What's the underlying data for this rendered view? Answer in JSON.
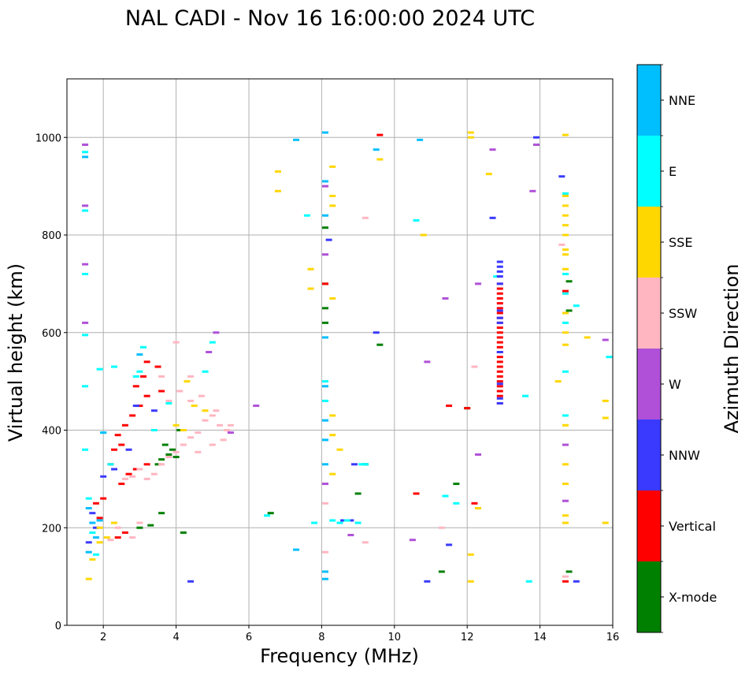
{
  "chart_data": {
    "type": "scatter",
    "title": "NAL CADI - Nov 16 16:00:00 2024 UTC",
    "xlabel": "Frequency (MHz)",
    "ylabel": "Virtual height (km)",
    "xlim": [
      1,
      16
    ],
    "ylim": [
      0,
      1120
    ],
    "x_ticks": [
      2,
      4,
      6,
      8,
      10,
      12,
      14,
      16
    ],
    "y_ticks": [
      0,
      200,
      400,
      600,
      800,
      1000
    ],
    "grid": true,
    "colorbar": {
      "label": "Azimuth Direction",
      "categories": [
        {
          "name": "X-mode",
          "color": "#008000"
        },
        {
          "name": "Vertical",
          "color": "#ff0000"
        },
        {
          "name": "NNW",
          "color": "#3a3aff"
        },
        {
          "name": "W",
          "color": "#b050d8"
        },
        {
          "name": "SSW",
          "color": "#ffb6c1"
        },
        {
          "name": "SSE",
          "color": "#ffd700"
        },
        {
          "name": "E",
          "color": "#00ffff"
        },
        {
          "name": "NNE",
          "color": "#00bfff"
        }
      ]
    },
    "series": [
      {
        "name": "X-mode",
        "points": [
          [
            3.6,
            340
          ],
          [
            3.8,
            350
          ],
          [
            4.0,
            345
          ],
          [
            3.5,
            330
          ],
          [
            3.9,
            360
          ],
          [
            3.3,
            205
          ],
          [
            3.6,
            230
          ],
          [
            3.0,
            200
          ],
          [
            4.2,
            190
          ],
          [
            8.1,
            815
          ],
          [
            8.1,
            650
          ],
          [
            8.1,
            620
          ],
          [
            8.1,
            700
          ],
          [
            9.0,
            270
          ],
          [
            9.6,
            575
          ],
          [
            11.3,
            110
          ],
          [
            11.7,
            290
          ],
          [
            12.0,
            445
          ],
          [
            14.8,
            705
          ],
          [
            14.8,
            645
          ],
          [
            14.8,
            110
          ],
          [
            6.6,
            230
          ],
          [
            9.2,
            330
          ],
          [
            3.7,
            370
          ],
          [
            4.1,
            400
          ]
        ]
      },
      {
        "name": "Vertical",
        "points": [
          [
            2.4,
            390
          ],
          [
            2.6,
            410
          ],
          [
            2.8,
            430
          ],
          [
            3.0,
            450
          ],
          [
            2.3,
            360
          ],
          [
            2.5,
            370
          ],
          [
            2.9,
            490
          ],
          [
            3.2,
            470
          ],
          [
            2.7,
            310
          ],
          [
            2.9,
            320
          ],
          [
            3.2,
            330
          ],
          [
            2.4,
            180
          ],
          [
            2.6,
            190
          ],
          [
            1.9,
            220
          ],
          [
            1.8,
            250
          ],
          [
            2.0,
            260
          ],
          [
            3.5,
            530
          ],
          [
            3.2,
            540
          ],
          [
            3.6,
            480
          ],
          [
            9.6,
            1005
          ],
          [
            8.1,
            700
          ],
          [
            11.5,
            450
          ],
          [
            12.2,
            250
          ],
          [
            10.6,
            270
          ],
          [
            14.7,
            90
          ],
          [
            14.7,
            685
          ],
          [
            12.0,
            445
          ],
          [
            2.2,
            330
          ],
          [
            3.1,
            510
          ],
          [
            2.5,
            290
          ]
        ]
      },
      {
        "name": "NNW",
        "points": [
          [
            1.8,
            200
          ],
          [
            1.7,
            230
          ],
          [
            1.6,
            170
          ],
          [
            2.3,
            320
          ],
          [
            2.9,
            450
          ],
          [
            8.2,
            790
          ],
          [
            8.6,
            215
          ],
          [
            8.8,
            215
          ],
          [
            9.5,
            600
          ],
          [
            11.5,
            165
          ],
          [
            12.7,
            835
          ],
          [
            13.9,
            1000
          ],
          [
            14.6,
            920
          ],
          [
            15.0,
            90
          ],
          [
            10.9,
            90
          ],
          [
            4.4,
            90
          ],
          [
            2.0,
            305
          ],
          [
            8.9,
            330
          ],
          [
            3.4,
            440
          ],
          [
            2.7,
            360
          ]
        ]
      },
      {
        "name": "W",
        "points": [
          [
            1.5,
            740
          ],
          [
            1.5,
            860
          ],
          [
            1.5,
            620
          ],
          [
            1.5,
            985
          ],
          [
            8.1,
            900
          ],
          [
            8.1,
            760
          ],
          [
            8.1,
            290
          ],
          [
            11.4,
            670
          ],
          [
            12.7,
            975
          ],
          [
            13.8,
            890
          ],
          [
            13.9,
            985
          ],
          [
            14.7,
            255
          ],
          [
            14.7,
            370
          ],
          [
            12.3,
            350
          ],
          [
            12.3,
            700
          ],
          [
            10.5,
            175
          ],
          [
            10.9,
            540
          ],
          [
            6.2,
            450
          ],
          [
            5.1,
            600
          ],
          [
            4.9,
            560
          ],
          [
            5.5,
            395
          ],
          [
            8.8,
            185
          ],
          [
            15.8,
            585
          ]
        ]
      },
      {
        "name": "SSW",
        "points": [
          [
            2.2,
            175
          ],
          [
            2.4,
            200
          ],
          [
            2.6,
            300
          ],
          [
            2.8,
            305
          ],
          [
            3.0,
            320
          ],
          [
            3.2,
            300
          ],
          [
            3.4,
            310
          ],
          [
            3.6,
            330
          ],
          [
            3.8,
            345
          ],
          [
            4.0,
            355
          ],
          [
            4.2,
            370
          ],
          [
            4.4,
            385
          ],
          [
            4.6,
            395
          ],
          [
            4.8,
            420
          ],
          [
            5.0,
            430
          ],
          [
            5.2,
            410
          ],
          [
            5.3,
            380
          ],
          [
            5.4,
            400
          ],
          [
            5.5,
            410
          ],
          [
            5.1,
            440
          ],
          [
            4.7,
            470
          ],
          [
            4.4,
            460
          ],
          [
            4.1,
            480
          ],
          [
            3.8,
            460
          ],
          [
            4.4,
            510
          ],
          [
            4.0,
            580
          ],
          [
            3.6,
            510
          ],
          [
            9.2,
            835
          ],
          [
            9.2,
            170
          ],
          [
            12.2,
            530
          ],
          [
            11.3,
            200
          ],
          [
            14.6,
            780
          ],
          [
            14.7,
            100
          ],
          [
            8.1,
            250
          ],
          [
            8.1,
            150
          ],
          [
            2.8,
            180
          ],
          [
            3.0,
            210
          ],
          [
            4.6,
            355
          ],
          [
            5.0,
            370
          ]
        ]
      },
      {
        "name": "SSE",
        "points": [
          [
            1.6,
            95
          ],
          [
            1.7,
            135
          ],
          [
            1.9,
            170
          ],
          [
            1.9,
            200
          ],
          [
            2.1,
            180
          ],
          [
            2.3,
            210
          ],
          [
            4.2,
            400
          ],
          [
            4.5,
            450
          ],
          [
            4.8,
            440
          ],
          [
            4.3,
            500
          ],
          [
            4.0,
            410
          ],
          [
            6.8,
            930
          ],
          [
            6.8,
            890
          ],
          [
            7.7,
            730
          ],
          [
            7.7,
            690
          ],
          [
            8.3,
            940
          ],
          [
            8.3,
            880
          ],
          [
            8.3,
            860
          ],
          [
            8.3,
            670
          ],
          [
            8.3,
            430
          ],
          [
            8.3,
            390
          ],
          [
            8.5,
            360
          ],
          [
            8.3,
            310
          ],
          [
            9.6,
            955
          ],
          [
            10.8,
            800
          ],
          [
            12.1,
            1010
          ],
          [
            12.1,
            1000
          ],
          [
            12.6,
            925
          ],
          [
            12.3,
            240
          ],
          [
            12.1,
            145
          ],
          [
            12.1,
            90
          ],
          [
            14.5,
            500
          ],
          [
            14.7,
            1005
          ],
          [
            14.7,
            880
          ],
          [
            14.7,
            860
          ],
          [
            14.7,
            840
          ],
          [
            14.7,
            820
          ],
          [
            14.7,
            800
          ],
          [
            14.7,
            770
          ],
          [
            14.7,
            760
          ],
          [
            14.7,
            730
          ],
          [
            14.7,
            600
          ],
          [
            14.7,
            575
          ],
          [
            14.7,
            410
          ],
          [
            14.7,
            330
          ],
          [
            14.7,
            290
          ],
          [
            14.7,
            225
          ],
          [
            14.7,
            210
          ],
          [
            15.3,
            590
          ],
          [
            15.8,
            460
          ],
          [
            15.8,
            425
          ],
          [
            15.8,
            210
          ],
          [
            14.7,
            640
          ]
        ]
      },
      {
        "name": "E",
        "points": [
          [
            1.5,
            970
          ],
          [
            1.5,
            850
          ],
          [
            1.5,
            720
          ],
          [
            1.5,
            595
          ],
          [
            1.5,
            490
          ],
          [
            1.5,
            360
          ],
          [
            1.6,
            260
          ],
          [
            1.7,
            190
          ],
          [
            1.8,
            145
          ],
          [
            2.0,
            395
          ],
          [
            1.9,
            525
          ],
          [
            3.1,
            570
          ],
          [
            3.0,
            520
          ],
          [
            2.9,
            510
          ],
          [
            3.4,
            400
          ],
          [
            2.2,
            330
          ],
          [
            3.8,
            455
          ],
          [
            4.8,
            520
          ],
          [
            5.0,
            580
          ],
          [
            7.6,
            840
          ],
          [
            8.1,
            500
          ],
          [
            8.1,
            460
          ],
          [
            8.3,
            215
          ],
          [
            8.5,
            210
          ],
          [
            8.7,
            215
          ],
          [
            9.0,
            210
          ],
          [
            9.1,
            330
          ],
          [
            9.2,
            330
          ],
          [
            10.6,
            830
          ],
          [
            11.4,
            265
          ],
          [
            11.7,
            250
          ],
          [
            12.8,
            715
          ],
          [
            13.7,
            90
          ],
          [
            14.7,
            885
          ],
          [
            14.7,
            720
          ],
          [
            14.7,
            680
          ],
          [
            14.7,
            620
          ],
          [
            14.7,
            520
          ],
          [
            14.7,
            430
          ],
          [
            15.0,
            655
          ],
          [
            13.6,
            470
          ],
          [
            15.9,
            550
          ],
          [
            7.8,
            210
          ],
          [
            6.5,
            225
          ],
          [
            2.3,
            530
          ]
        ]
      },
      {
        "name": "NNE",
        "points": [
          [
            1.5,
            960
          ],
          [
            1.6,
            240
          ],
          [
            1.7,
            210
          ],
          [
            1.8,
            180
          ],
          [
            1.9,
            215
          ],
          [
            2.0,
            395
          ],
          [
            8.1,
            1010
          ],
          [
            8.1,
            840
          ],
          [
            8.1,
            110
          ],
          [
            8.1,
            95
          ],
          [
            8.1,
            380
          ],
          [
            8.1,
            330
          ],
          [
            8.1,
            590
          ],
          [
            9.5,
            975
          ],
          [
            10.7,
            995
          ],
          [
            7.3,
            155
          ],
          [
            7.3,
            995
          ],
          [
            8.1,
            490
          ],
          [
            8.1,
            420
          ],
          [
            1.6,
            150
          ],
          [
            3.0,
            555
          ],
          [
            8.1,
            910
          ]
        ]
      },
      {
        "name": "Vertical",
        "points": [
          [
            12.9,
            455
          ],
          [
            12.9,
            470
          ],
          [
            12.9,
            480
          ],
          [
            12.9,
            490
          ],
          [
            12.9,
            500
          ],
          [
            12.9,
            510
          ],
          [
            12.9,
            520
          ],
          [
            12.9,
            530
          ],
          [
            12.9,
            540
          ],
          [
            12.9,
            550
          ],
          [
            12.9,
            560
          ],
          [
            12.9,
            570
          ],
          [
            12.9,
            580
          ],
          [
            12.9,
            590
          ],
          [
            12.9,
            600
          ],
          [
            12.9,
            610
          ],
          [
            12.9,
            620
          ],
          [
            12.9,
            630
          ],
          [
            12.9,
            640
          ],
          [
            12.9,
            650
          ],
          [
            12.9,
            660
          ],
          [
            12.9,
            670
          ],
          [
            12.9,
            680
          ],
          [
            12.9,
            690
          ],
          [
            12.9,
            700
          ]
        ]
      },
      {
        "name": "NNW",
        "points": [
          [
            12.9,
            455
          ],
          [
            12.9,
            465
          ],
          [
            12.9,
            495
          ],
          [
            12.9,
            560
          ],
          [
            12.9,
            620
          ],
          [
            12.9,
            630
          ],
          [
            12.9,
            645
          ],
          [
            12.9,
            700
          ],
          [
            12.9,
            715
          ],
          [
            12.9,
            725
          ],
          [
            12.9,
            735
          ],
          [
            12.9,
            745
          ]
        ]
      }
    ]
  }
}
